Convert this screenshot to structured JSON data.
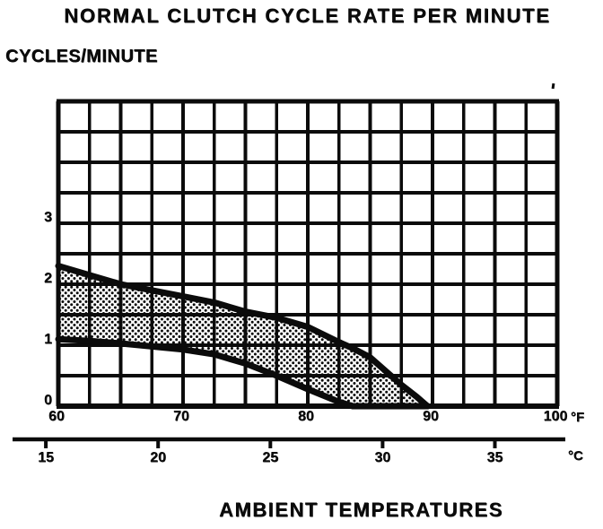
{
  "page": {
    "background": "#ffffff",
    "ink_color": "#0b0b0b"
  },
  "chart_data": {
    "type": "area",
    "title": "NORMAL CLUTCH CYCLE RATE PER MINUTE",
    "ylabel": "CYCLES/MINUTE",
    "xlabel": "AMBIENT TEMPERATURES",
    "grid": true,
    "y_axis": {
      "ticks": [
        0,
        1,
        2,
        3
      ],
      "range": [
        0,
        5
      ],
      "grid_step": 0.5
    },
    "x_axis_fahrenheit": {
      "unit": "°F",
      "ticks": [
        60,
        70,
        80,
        90,
        100
      ],
      "range": [
        60,
        100
      ],
      "grid_step": 2.5
    },
    "x_axis_celsius": {
      "unit": "°C",
      "ticks": [
        15,
        20,
        25,
        30,
        35
      ]
    },
    "band": {
      "name": "normal-clutch-cycle-rate-band",
      "style": "stippled",
      "x_f": [
        60,
        62.5,
        65,
        67.5,
        70,
        72.5,
        75,
        77.5,
        80,
        82.5,
        83.6,
        85,
        87.5,
        88.75,
        89.6
      ],
      "upper": [
        2.3,
        2.15,
        2.0,
        1.9,
        1.8,
        1.7,
        1.55,
        1.45,
        1.3,
        1.05,
        0.95,
        0.8,
        0.35,
        0.15,
        0
      ],
      "lower": [
        1.1,
        1.07,
        1.03,
        0.98,
        0.93,
        0.85,
        0.7,
        0.5,
        0.28,
        0.07,
        0,
        0,
        0,
        0,
        0
      ]
    }
  }
}
